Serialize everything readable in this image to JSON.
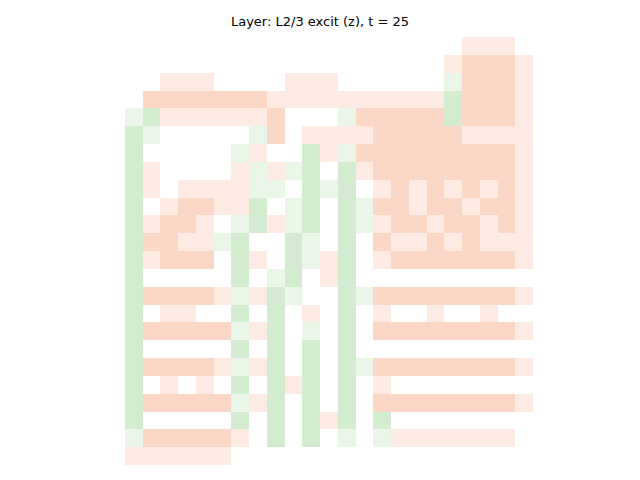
{
  "chart_data": {
    "type": "heatmap",
    "title": "Layer: L2/3 excit (z), t = 25",
    "zlim": [
      -1,
      1
    ],
    "tick_labels": false,
    "z": [
      [
        0,
        0,
        0,
        0,
        0,
        0,
        0,
        0,
        0,
        0,
        0,
        0,
        0,
        0,
        0,
        0,
        0,
        0,
        0,
        0,
        0.5,
        0.5,
        0.5,
        0
      ],
      [
        0,
        0,
        0,
        0,
        0,
        0,
        0,
        0,
        0,
        0,
        0,
        0,
        0,
        0,
        0,
        0,
        0,
        0,
        0,
        0.5,
        1,
        1,
        1,
        0.5
      ],
      [
        0,
        0,
        0,
        0.5,
        0.5,
        0.5,
        0,
        0,
        0,
        0,
        0.5,
        0.5,
        0.5,
        0,
        0,
        0,
        0,
        0,
        0,
        -0.5,
        1,
        1,
        1,
        0.5
      ],
      [
        0,
        0,
        1,
        1,
        1,
        1,
        1,
        1,
        1,
        0.5,
        0.5,
        0.5,
        0.5,
        0.5,
        0.5,
        0.5,
        0.5,
        0.5,
        0.5,
        -1,
        1,
        1,
        1,
        0.5
      ],
      [
        0,
        -0.5,
        -1,
        0.5,
        0.5,
        0.5,
        0.5,
        0.5,
        0.5,
        1,
        0,
        0,
        0,
        -0.5,
        1,
        1,
        1,
        1,
        1,
        -1,
        1,
        1,
        1,
        0.5
      ],
      [
        0,
        -1,
        -0.5,
        0,
        0,
        0,
        0,
        0,
        -0.5,
        1,
        0,
        0.5,
        0.5,
        0.5,
        0.5,
        1,
        1,
        1,
        1,
        1,
        0.5,
        0.5,
        0.5,
        0.5
      ],
      [
        0,
        -1,
        0,
        0,
        0,
        0,
        0,
        -0.5,
        0.5,
        0,
        0,
        -1,
        0.5,
        -0.5,
        1,
        1,
        1,
        1,
        1,
        1,
        1,
        1,
        1,
        0.5
      ],
      [
        0,
        -1,
        0.5,
        0,
        0,
        0,
        0,
        0.5,
        -0.5,
        0.5,
        -0.5,
        -1,
        0,
        -1,
        0.5,
        1,
        1,
        1,
        1,
        1,
        1,
        1,
        1,
        0.5
      ],
      [
        0,
        -1,
        0.5,
        0,
        0.5,
        0.5,
        0.5,
        0.5,
        -0.5,
        -0.5,
        0,
        -1,
        -0.5,
        -1,
        0,
        0.5,
        1,
        0.5,
        1,
        0.5,
        1,
        0.5,
        1,
        0.5
      ],
      [
        0,
        -1,
        0,
        0.5,
        1,
        1,
        0.5,
        0.5,
        -1,
        0,
        -0.5,
        -1,
        0,
        -1,
        -0.5,
        1,
        1,
        0.5,
        1,
        1,
        0.5,
        1,
        1,
        0.5
      ],
      [
        0,
        -1,
        0.5,
        1,
        1,
        0.5,
        0,
        -0.5,
        -1,
        0.5,
        -0.5,
        -1,
        0,
        -1,
        -0.5,
        0.5,
        1,
        1,
        0.5,
        1,
        1,
        0.5,
        1,
        0.5
      ],
      [
        0,
        -1,
        1,
        1,
        0.5,
        0.5,
        -0.5,
        -1,
        0,
        0,
        -1,
        -0.5,
        0,
        -1,
        0,
        1,
        0.5,
        0.5,
        1,
        0.5,
        1,
        0.5,
        0.5,
        0.5
      ],
      [
        0,
        -1,
        0.5,
        1,
        1,
        1,
        0,
        -1,
        0.5,
        0,
        -1,
        -0.5,
        0.5,
        -1,
        0,
        0.5,
        1,
        1,
        1,
        1,
        1,
        1,
        1,
        0.5
      ],
      [
        0,
        -1,
        0,
        0,
        0,
        0,
        0,
        -1,
        0,
        -0.5,
        -1,
        0,
        0.5,
        -1,
        0,
        0,
        0,
        0,
        0,
        0,
        0,
        0,
        0,
        0
      ],
      [
        0,
        -1,
        1,
        1,
        1,
        1,
        0.5,
        -0.5,
        0.5,
        -1,
        -0.5,
        0,
        0,
        -1,
        -0.5,
        1,
        1,
        1,
        1,
        1,
        1,
        1,
        1,
        0.5
      ],
      [
        0,
        -1,
        0,
        0.5,
        0.5,
        0,
        0,
        -1,
        0,
        -1,
        0,
        0.5,
        0,
        -1,
        0,
        0.5,
        0,
        0,
        0.5,
        0,
        0,
        0.5,
        0,
        0
      ],
      [
        0,
        -1,
        1,
        1,
        1,
        1,
        1,
        -0.5,
        0.5,
        -1,
        0,
        -0.5,
        0,
        -1,
        0,
        1,
        1,
        1,
        1,
        1,
        1,
        1,
        1,
        0.5
      ],
      [
        0,
        -1,
        0,
        0,
        0,
        0,
        0,
        -1,
        0,
        -1,
        0,
        -1,
        0,
        -1,
        0,
        0,
        0,
        0,
        0,
        0,
        0,
        0,
        0,
        0
      ],
      [
        0,
        -1,
        1,
        1,
        1,
        1,
        0.5,
        -0.5,
        0.5,
        -1,
        0,
        -1,
        0,
        -1,
        -0.5,
        1,
        1,
        1,
        1,
        1,
        1,
        1,
        1,
        0.5
      ],
      [
        0,
        -1,
        0,
        0.5,
        0,
        0.5,
        0,
        -1,
        0,
        -1,
        0.5,
        -1,
        0,
        -1,
        0,
        0.5,
        0,
        0,
        0,
        0,
        0,
        0,
        0,
        0
      ],
      [
        0,
        -1,
        1,
        1,
        1,
        1,
        1,
        -0.5,
        0.5,
        -1,
        0,
        -1,
        0,
        -1,
        0,
        1,
        1,
        1,
        1,
        1,
        1,
        1,
        1,
        0.5
      ],
      [
        0,
        -1,
        0,
        0,
        0,
        0,
        0,
        -1,
        0,
        -1,
        0,
        -1,
        0.5,
        -1,
        0,
        -1,
        0,
        0,
        0,
        0,
        0,
        0,
        0,
        0
      ],
      [
        0,
        -0.5,
        1,
        1,
        1,
        1,
        1,
        0.5,
        0,
        -1,
        0,
        -1,
        0,
        -0.5,
        0,
        -0.5,
        0.5,
        0.5,
        0.5,
        0.5,
        0.5,
        0.5,
        0.5,
        0
      ],
      [
        0,
        0.5,
        0.5,
        0.5,
        0.5,
        0.5,
        0.5,
        0,
        0,
        0,
        0,
        0,
        0,
        0,
        0,
        0,
        0,
        0,
        0,
        0,
        0,
        0,
        0,
        0
      ]
    ]
  }
}
